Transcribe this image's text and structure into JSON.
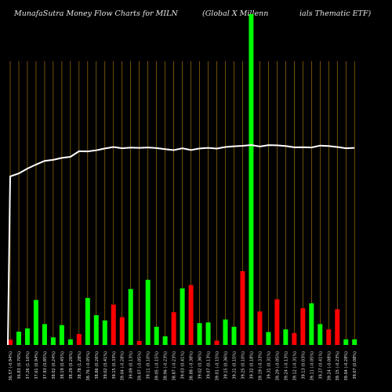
{
  "header": {
    "left": "MunafaSutra  Money Flow  Charts for MILN",
    "middle": "(Global X  Millenn",
    "right": "ials Thematic ETF)"
  },
  "colors": {
    "background": "#000000",
    "grid": "#b8860b",
    "up": "#00ff00",
    "down": "#ff0000",
    "price_line": "#ffffff",
    "text": "#e6e6e6"
  },
  "chart_data": {
    "type": "bar",
    "title": "MunafaSutra Money Flow Charts for MILN (Global X Millennials Thematic ETF)",
    "bar_max": 100,
    "categories": [
      "36.57 (-0.94%)",
      "36.83 (0.70%)",
      "37.26 (1.16%)",
      "37.61 (0.94%)",
      "37.93 (0.85%)",
      "38.02 (0.24%)",
      "38.19 (0.45%)",
      "38.29 (0.26%)",
      "38.78 (1.28%)",
      "38.76 (-0.05%)",
      "38.86 (0.26%)",
      "39.02 (0.41%)",
      "39.15 (0.33%)",
      "39.04 (-0.28%)",
      "39.09 (0.13%)",
      "39.07 (-0.05%)",
      "39.11 (0.10%)",
      "39.05 (-0.15%)",
      "38.96 (-0.23%)",
      "38.87 (-0.23%)",
      "39.03 (0.41%)",
      "38.88 (-0.38%)",
      "39.02 (0.36%)",
      "39.07 (0.13%)",
      "39.01 (-0.15%)",
      "39.15 (0.36%)",
      "39.21 (0.15%)",
      "39.25 (0.10%)",
      "39.32 (0.18%)",
      "39.19 (-0.33%)",
      "39.31 (0.31%)",
      "39.29 (-0.05%)",
      "39.24 (-0.13%)",
      "39.12 (-0.31%)",
      "39.13 (0.03%)",
      "39.11 (-0.05%)",
      "39.27 (0.41%)",
      "39.24 (-0.08%)",
      "39.15 (-0.23%)",
      "39.04 (-0.28%)",
      "39.07 (0.08%)"
    ],
    "directions": [
      "down",
      "up",
      "up",
      "up",
      "up",
      "up",
      "up",
      "up",
      "down",
      "up",
      "up",
      "up",
      "down",
      "down",
      "up",
      "down",
      "up",
      "up",
      "up",
      "down",
      "up",
      "down",
      "up",
      "up",
      "down",
      "up",
      "up",
      "down",
      "up",
      "down",
      "up",
      "down",
      "up",
      "down",
      "down",
      "up",
      "up",
      "down",
      "down",
      "up",
      "up"
    ],
    "values": [
      1.6,
      4.0,
      5.0,
      13.6,
      6.3,
      2.3,
      6.0,
      1.7,
      3.3,
      14.2,
      9.0,
      7.4,
      12.2,
      8.4,
      16.9,
      1.2,
      19.7,
      5.5,
      2.6,
      9.9,
      17.1,
      18.1,
      6.6,
      6.8,
      1.3,
      7.7,
      5.5,
      22.3,
      100,
      10.1,
      3.9,
      13.8,
      4.7,
      3.6,
      11.1,
      12.6,
      6.3,
      4.7,
      10.8,
      1.7,
      1.7
    ],
    "price": [
      36.57,
      36.83,
      37.26,
      37.61,
      37.93,
      38.02,
      38.19,
      38.29,
      38.78,
      38.76,
      38.86,
      39.02,
      39.15,
      39.04,
      39.09,
      39.07,
      39.11,
      39.05,
      38.96,
      38.87,
      39.03,
      38.88,
      39.02,
      39.07,
      39.01,
      39.15,
      39.21,
      39.25,
      39.32,
      39.19,
      39.31,
      39.29,
      39.24,
      39.12,
      39.13,
      39.11,
      39.27,
      39.24,
      39.15,
      39.04,
      39.07
    ],
    "grid": true,
    "legend": "none"
  }
}
